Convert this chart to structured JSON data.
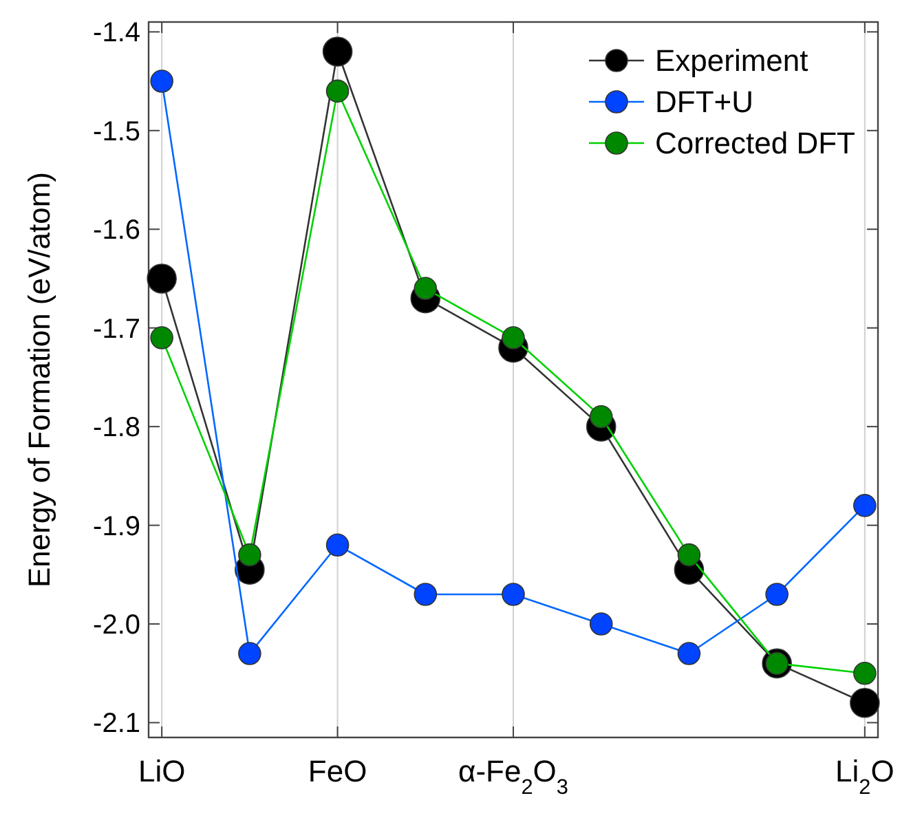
{
  "chart_data": {
    "type": "line",
    "ylabel": "Energy of Formation (eV/atom)",
    "categories": [
      "LiO",
      null,
      "FeO",
      null,
      "α-Fe$_{2}$O$_{3}$",
      null,
      null,
      null,
      "Li$_{2}$O"
    ],
    "ylim": [
      -2.115,
      -1.39
    ],
    "yticks": [
      {
        "value": -2.1,
        "label": "-2.1"
      },
      {
        "value": -2.0,
        "label": "-2.0"
      },
      {
        "value": -1.9,
        "label": "-1.9"
      },
      {
        "value": -1.8,
        "label": "-1.8"
      },
      {
        "value": -1.7,
        "label": "-1.7"
      },
      {
        "value": -1.6,
        "label": "-1.6"
      },
      {
        "value": -1.5,
        "label": "-1.5"
      },
      {
        "value": -1.4,
        "label": "-1.4"
      }
    ],
    "grid": "x",
    "legend": "top right",
    "marker": "circle",
    "line_style": "solid",
    "series": [
      {
        "name": "Experiment",
        "color": "#000000",
        "values": [
          -1.65,
          -1.945,
          -1.42,
          -1.67,
          -1.72,
          -1.8,
          -1.945,
          -2.04,
          -2.08
        ]
      },
      {
        "name": "DFT+U",
        "color": "#0044ff",
        "values": [
          -1.45,
          -2.03,
          -1.92,
          -1.97,
          -1.97,
          -2.0,
          -2.03,
          -1.97,
          -1.88
        ]
      },
      {
        "name": "Corrected DFT",
        "color": "#008800",
        "values": [
          -1.71,
          -1.93,
          -1.46,
          -1.66,
          -1.71,
          -1.79,
          -1.93,
          -2.04,
          -2.05
        ]
      }
    ]
  }
}
